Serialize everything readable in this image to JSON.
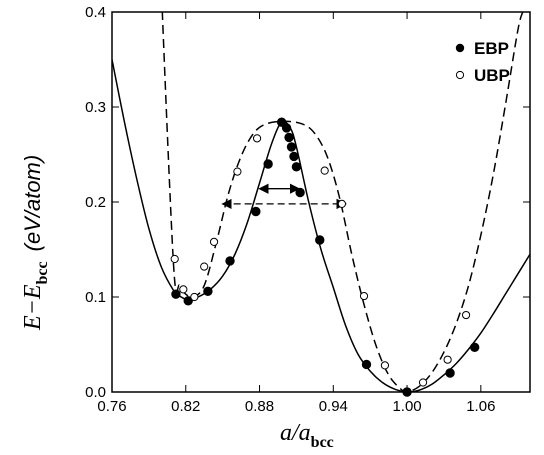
{
  "chart_data": {
    "type": "line",
    "xlabel": {
      "main": "a/a",
      "sub": "bcc"
    },
    "ylabel": {
      "main": "E−E",
      "sub": "bcc",
      "unit": "(eV/atom)"
    },
    "xlim": [
      0.76,
      1.1
    ],
    "ylim": [
      0.0,
      0.4
    ],
    "xticks": [
      0.76,
      0.82,
      0.88,
      0.94,
      1.0,
      1.06
    ],
    "xtick_labels": [
      "0.76",
      "0.82",
      "0.88",
      "0.94",
      "1.00",
      "1.06"
    ],
    "yticks": [
      0.0,
      0.1,
      0.2,
      0.3,
      0.4
    ],
    "ytick_labels": [
      "0.0",
      "0.1",
      "0.2",
      "0.3",
      "0.4"
    ],
    "legend_position": "top-right",
    "series": [
      {
        "name": "EBP",
        "marker": "filled-circle",
        "line": "solid",
        "curve": [
          [
            0.76,
            0.35
          ],
          [
            0.77,
            0.285
          ],
          [
            0.78,
            0.225
          ],
          [
            0.79,
            0.172
          ],
          [
            0.8,
            0.132
          ],
          [
            0.81,
            0.107
          ],
          [
            0.815,
            0.101
          ],
          [
            0.822,
            0.097
          ],
          [
            0.83,
            0.1
          ],
          [
            0.84,
            0.108
          ],
          [
            0.85,
            0.122
          ],
          [
            0.86,
            0.145
          ],
          [
            0.87,
            0.178
          ],
          [
            0.88,
            0.22
          ],
          [
            0.89,
            0.262
          ],
          [
            0.898,
            0.284
          ],
          [
            0.905,
            0.278
          ],
          [
            0.91,
            0.258
          ],
          [
            0.92,
            0.2
          ],
          [
            0.93,
            0.15
          ],
          [
            0.94,
            0.11
          ],
          [
            0.95,
            0.07
          ],
          [
            0.96,
            0.04
          ],
          [
            0.97,
            0.022
          ],
          [
            0.98,
            0.01
          ],
          [
            0.99,
            0.003
          ],
          [
            1.0,
            0.0
          ],
          [
            1.01,
            0.002
          ],
          [
            1.02,
            0.008
          ],
          [
            1.03,
            0.018
          ],
          [
            1.04,
            0.03
          ],
          [
            1.05,
            0.045
          ],
          [
            1.06,
            0.062
          ],
          [
            1.07,
            0.082
          ],
          [
            1.08,
            0.103
          ],
          [
            1.09,
            0.124
          ],
          [
            1.1,
            0.145
          ]
        ],
        "points": [
          [
            0.812,
            0.103
          ],
          [
            0.822,
            0.096
          ],
          [
            0.838,
            0.106
          ],
          [
            0.856,
            0.138
          ],
          [
            0.877,
            0.19
          ],
          [
            0.887,
            0.24
          ],
          [
            0.898,
            0.284
          ],
          [
            0.902,
            0.278
          ],
          [
            0.904,
            0.268
          ],
          [
            0.906,
            0.258
          ],
          [
            0.908,
            0.248
          ],
          [
            0.91,
            0.237
          ],
          [
            0.913,
            0.21
          ],
          [
            0.929,
            0.16
          ],
          [
            0.967,
            0.029
          ],
          [
            1.0,
            0.0
          ],
          [
            1.035,
            0.02
          ],
          [
            1.055,
            0.047
          ]
        ]
      },
      {
        "name": "UBP",
        "marker": "open-circle",
        "line": "dashed",
        "curve": [
          [
            0.802,
            0.4
          ],
          [
            0.8,
            0.43
          ],
          [
            0.81,
            0.135
          ],
          [
            0.815,
            0.112
          ],
          [
            0.82,
            0.103
          ],
          [
            0.826,
            0.1
          ],
          [
            0.835,
            0.112
          ],
          [
            0.845,
            0.158
          ],
          [
            0.855,
            0.21
          ],
          [
            0.865,
            0.248
          ],
          [
            0.875,
            0.272
          ],
          [
            0.885,
            0.282
          ],
          [
            0.9,
            0.285
          ],
          [
            0.915,
            0.282
          ],
          [
            0.925,
            0.272
          ],
          [
            0.935,
            0.248
          ],
          [
            0.945,
            0.205
          ],
          [
            0.955,
            0.145
          ],
          [
            0.965,
            0.092
          ],
          [
            0.975,
            0.048
          ],
          [
            0.985,
            0.018
          ],
          [
            0.995,
            0.003
          ],
          [
            1.0,
            0.0
          ],
          [
            1.01,
            0.006
          ],
          [
            1.02,
            0.02
          ],
          [
            1.03,
            0.042
          ],
          [
            1.04,
            0.072
          ],
          [
            1.05,
            0.112
          ],
          [
            1.06,
            0.165
          ],
          [
            1.07,
            0.228
          ],
          [
            1.08,
            0.302
          ],
          [
            1.09,
            0.38
          ],
          [
            1.094,
            0.4
          ]
        ],
        "points": [
          [
            0.811,
            0.14
          ],
          [
            0.818,
            0.108
          ],
          [
            0.827,
            0.1
          ],
          [
            0.835,
            0.132
          ],
          [
            0.843,
            0.158
          ],
          [
            0.862,
            0.232
          ],
          [
            0.878,
            0.267
          ],
          [
            0.933,
            0.233
          ],
          [
            0.947,
            0.198
          ],
          [
            0.965,
            0.101
          ],
          [
            0.982,
            0.028
          ],
          [
            1.013,
            0.01
          ],
          [
            1.033,
            0.034
          ],
          [
            1.048,
            0.081
          ]
        ]
      }
    ],
    "annotations": [
      {
        "type": "double-arrow",
        "x1": 0.88,
        "x2": 0.912,
        "y": 0.214
      },
      {
        "type": "double-arrow",
        "x1": 0.85,
        "x2": 0.95,
        "y": 0.198,
        "line": "dashed"
      }
    ]
  }
}
